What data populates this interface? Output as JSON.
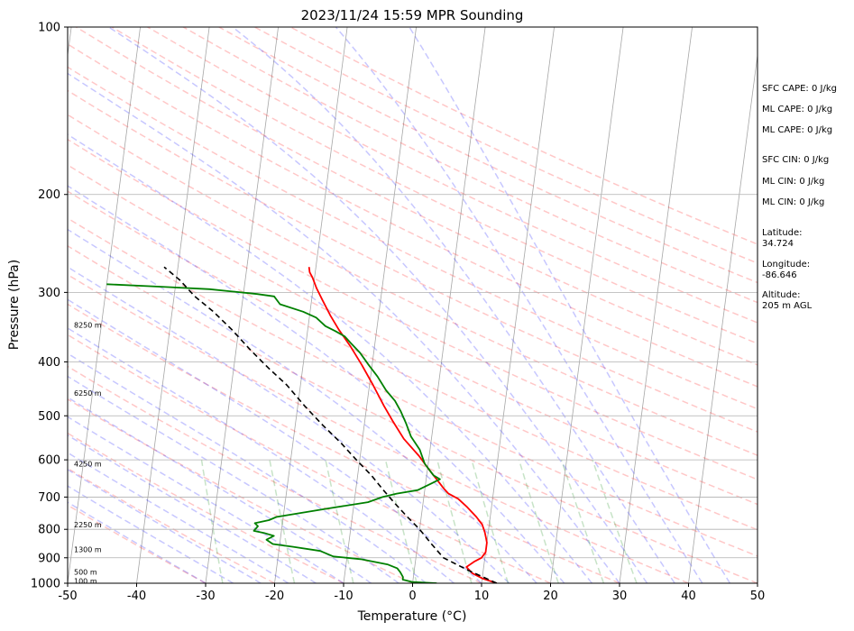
{
  "chart_data": {
    "type": "line",
    "title": "2023/11/24 15:59 MPR Sounding",
    "xlabel": "Temperature (°C)",
    "ylabel": "Pressure (hPa)",
    "xlim": [
      -50,
      50
    ],
    "ylim": [
      1000,
      100
    ],
    "y_scale": "log",
    "grid": true,
    "x_ticks": [
      "-50",
      "-40",
      "-30",
      "-20",
      "-10",
      "0",
      "10",
      "20",
      "30",
      "40",
      "50"
    ],
    "y_ticks": [
      "100",
      "200",
      "300",
      "400",
      "500",
      "600",
      "700",
      "800",
      "900",
      "1000"
    ],
    "height_labels": [
      {
        "pressure": 990,
        "label": "100 m"
      },
      {
        "pressure": 955,
        "label": "500 m"
      },
      {
        "pressure": 870,
        "label": "1300 m"
      },
      {
        "pressure": 785,
        "label": "2250 m"
      },
      {
        "pressure": 610,
        "label": "4250 m"
      },
      {
        "pressure": 455,
        "label": "6250 m"
      },
      {
        "pressure": 343,
        "label": "8250 m"
      }
    ],
    "series": [
      {
        "kind": "temperature",
        "color": "#ff0000",
        "points": [
          [
            12.2,
            1000
          ],
          [
            10,
            980
          ],
          [
            8.5,
            960
          ],
          [
            7.5,
            935
          ],
          [
            8.5,
            915
          ],
          [
            9.5,
            900
          ],
          [
            10,
            880
          ],
          [
            10,
            860
          ],
          [
            10,
            845
          ],
          [
            9.8,
            830
          ],
          [
            9.5,
            810
          ],
          [
            9,
            785
          ],
          [
            8,
            760
          ],
          [
            6.5,
            730
          ],
          [
            5,
            705
          ],
          [
            3.5,
            690
          ],
          [
            2.7,
            675
          ],
          [
            2,
            660
          ],
          [
            0.5,
            630
          ],
          [
            -1.5,
            590
          ],
          [
            -4,
            550
          ],
          [
            -6,
            510
          ],
          [
            -7.5,
            480
          ],
          [
            -9.5,
            440
          ],
          [
            -11.5,
            405
          ],
          [
            -13.5,
            375
          ],
          [
            -15.5,
            350
          ],
          [
            -17,
            330
          ],
          [
            -18.4,
            310
          ],
          [
            -19.5,
            295
          ],
          [
            -20.3,
            282
          ],
          [
            -20.8,
            276
          ],
          [
            -21,
            270
          ]
        ]
      },
      {
        "kind": "dewpoint",
        "color": "#008000",
        "points": [
          [
            3.5,
            1000
          ],
          [
            0,
            995
          ],
          [
            -1.5,
            985
          ],
          [
            -1.5,
            975
          ],
          [
            -2,
            955
          ],
          [
            -2.5,
            940
          ],
          [
            -4,
            925
          ],
          [
            -8,
            905
          ],
          [
            -12,
            895
          ],
          [
            -14,
            875
          ],
          [
            -18,
            860
          ],
          [
            -21,
            850
          ],
          [
            -22,
            835
          ],
          [
            -21,
            822
          ],
          [
            -22.5,
            812
          ],
          [
            -24,
            805
          ],
          [
            -23.5,
            790
          ],
          [
            -24,
            780
          ],
          [
            -22,
            770
          ],
          [
            -21,
            760
          ],
          [
            -14,
            735
          ],
          [
            -8,
            715
          ],
          [
            -6,
            700
          ],
          [
            -4,
            690
          ],
          [
            -1,
            680
          ],
          [
            0,
            670
          ],
          [
            1,
            660
          ],
          [
            2,
            650
          ],
          [
            1,
            640
          ],
          [
            -0.5,
            610
          ],
          [
            -1.5,
            575
          ],
          [
            -3,
            545
          ],
          [
            -4,
            515
          ],
          [
            -5,
            490
          ],
          [
            -6,
            470
          ],
          [
            -7.5,
            450
          ],
          [
            -9,
            425
          ],
          [
            -10.5,
            405
          ],
          [
            -12,
            385
          ],
          [
            -13.5,
            370
          ],
          [
            -14.5,
            360
          ],
          [
            -16,
            352
          ],
          [
            -17.5,
            345
          ],
          [
            -19,
            333
          ],
          [
            -21,
            325
          ],
          [
            -24.5,
            315
          ],
          [
            -25.5,
            305
          ],
          [
            -28,
            302
          ],
          [
            -35,
            296
          ],
          [
            -42,
            293
          ],
          [
            -50,
            290
          ]
        ]
      },
      {
        "kind": "parcel",
        "color": "#000000",
        "style": "dashed",
        "points": [
          [
            12.2,
            1000
          ],
          [
            8,
            950
          ],
          [
            4,
            900
          ],
          [
            2,
            850
          ],
          [
            0,
            800
          ],
          [
            -2,
            760
          ],
          [
            -4,
            720
          ],
          [
            -6,
            680
          ],
          [
            -8,
            640
          ],
          [
            -10.5,
            600
          ],
          [
            -13,
            560
          ],
          [
            -16,
            520
          ],
          [
            -19,
            480
          ],
          [
            -22,
            440
          ],
          [
            -25,
            410
          ],
          [
            -28,
            380
          ],
          [
            -31,
            350
          ],
          [
            -34,
            325
          ],
          [
            -37,
            305
          ],
          [
            -39.5,
            285
          ],
          [
            -42,
            270
          ]
        ]
      }
    ],
    "reference_lines": {
      "dry_adiabats_color": "#ff0000",
      "moist_adiabats_color": "#0000ff",
      "mixing_ratio_color": "#008000",
      "isotherm_color": "#808080"
    }
  },
  "side_panel": {
    "sfc_cape": "SFC CAPE: 0 J/kg",
    "ml_cape_1": "ML CAPE: 0 J/kg",
    "ml_cape_2": "ML CAPE: 0 J/kg",
    "sfc_cin": "SFC CIN: 0 J/kg",
    "ml_cin_1": "ML CIN: 0 J/kg",
    "ml_cin_2": "ML CIN: 0 J/kg",
    "latitude": "Latitude:\n34.724",
    "longitude": "Longitude:\n-86.646",
    "altitude": "Altitude:\n205 m AGL"
  }
}
